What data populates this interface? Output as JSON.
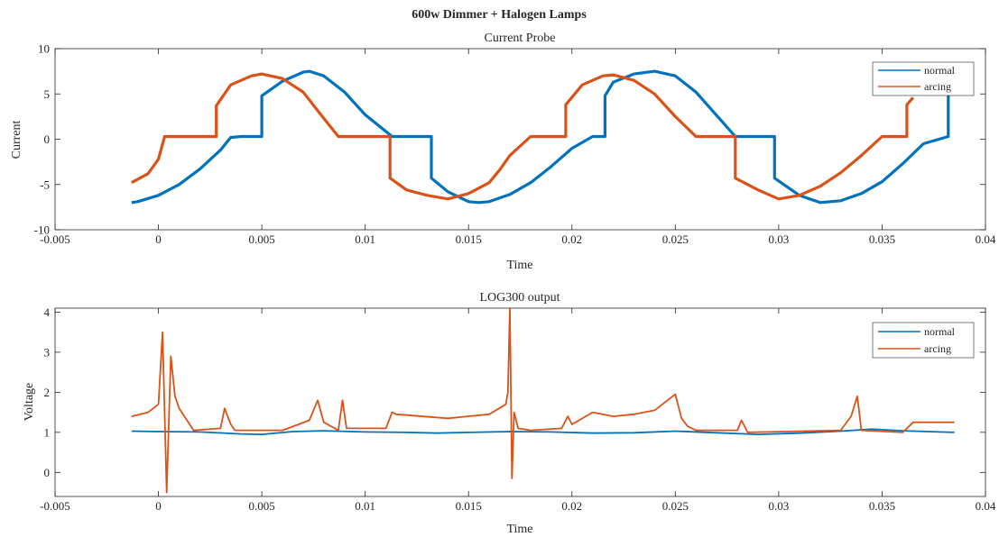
{
  "figure": {
    "suptitle": "600w Dimmer + Halogen Lamps",
    "colors": {
      "normal": "#0072BD",
      "arcing": "#D95319"
    }
  },
  "chart_data": [
    {
      "type": "line",
      "title": "Current Probe",
      "xlabel": "Time",
      "ylabel": "Current",
      "xlim": [
        -0.005,
        0.04
      ],
      "ylim": [
        -10,
        10
      ],
      "xticks": [
        "-0.005",
        "0",
        "0.005",
        "0.01",
        "0.015",
        "0.02",
        "0.025",
        "0.03",
        "0.035",
        "0.04"
      ],
      "yticks": [
        "-10",
        "-5",
        "0",
        "5",
        "10"
      ],
      "legend": {
        "location": "top-right",
        "entries": [
          "normal",
          "arcing"
        ]
      },
      "series": [
        {
          "name": "normal",
          "x": [
            -0.0013,
            -0.001,
            0.0,
            0.001,
            0.002,
            0.003,
            0.0035,
            0.004,
            0.005,
            0.005,
            0.006,
            0.007,
            0.0073,
            0.008,
            0.009,
            0.01,
            0.0113,
            0.0114,
            0.012,
            0.0132,
            0.0132,
            0.014,
            0.015,
            0.0155,
            0.016,
            0.017,
            0.018,
            0.019,
            0.02,
            0.021,
            0.0216,
            0.0216,
            0.0216,
            0.022,
            0.023,
            0.024,
            0.025,
            0.026,
            0.0279,
            0.028,
            0.029,
            0.0298,
            0.0298,
            0.031,
            0.032,
            0.033,
            0.034,
            0.035,
            0.036,
            0.037,
            0.0382,
            0.0382
          ],
          "y": [
            -7.0,
            -6.9,
            -6.2,
            -5.0,
            -3.3,
            -1.2,
            0.2,
            0.3,
            0.3,
            4.8,
            6.4,
            7.4,
            7.5,
            7.0,
            5.2,
            2.7,
            0.3,
            0.3,
            0.3,
            0.3,
            -4.3,
            -5.8,
            -6.9,
            -7.0,
            -6.9,
            -6.1,
            -4.8,
            -3.0,
            -1.0,
            0.3,
            0.3,
            0.3,
            4.8,
            6.3,
            7.2,
            7.5,
            7.0,
            5.2,
            0.3,
            0.3,
            0.3,
            0.3,
            -4.3,
            -6.2,
            -7.0,
            -6.8,
            -6.0,
            -4.7,
            -2.7,
            -0.5,
            0.3,
            7.5
          ]
        },
        {
          "name": "arcing",
          "x": [
            -0.0013,
            -0.0005,
            0.0,
            0.0003,
            0.001,
            0.002,
            0.0028,
            0.0028,
            0.0035,
            0.0045,
            0.005,
            0.006,
            0.007,
            0.008,
            0.0087,
            0.009,
            0.01,
            0.0112,
            0.0112,
            0.012,
            0.013,
            0.014,
            0.015,
            0.016,
            0.0165,
            0.017,
            0.018,
            0.019,
            0.0197,
            0.0197,
            0.0205,
            0.0215,
            0.022,
            0.023,
            0.024,
            0.025,
            0.026,
            0.027,
            0.0279,
            0.0279,
            0.029,
            0.03,
            0.031,
            0.032,
            0.033,
            0.034,
            0.035,
            0.036,
            0.0362,
            0.0362,
            0.0365
          ],
          "y": [
            -4.8,
            -3.8,
            -2.2,
            0.3,
            0.3,
            0.3,
            0.3,
            3.7,
            6.0,
            7.0,
            7.2,
            6.7,
            5.2,
            2.3,
            0.3,
            0.3,
            0.3,
            0.3,
            -4.3,
            -5.6,
            -6.2,
            -6.6,
            -6.0,
            -4.8,
            -3.4,
            -1.8,
            0.3,
            0.3,
            0.3,
            3.8,
            6.0,
            7.0,
            7.1,
            6.5,
            5.0,
            2.5,
            0.3,
            0.3,
            0.3,
            -4.3,
            -5.6,
            -6.6,
            -6.2,
            -5.2,
            -3.7,
            -1.8,
            0.3,
            0.3,
            0.3,
            3.8,
            4.6
          ]
        }
      ]
    },
    {
      "type": "line",
      "title": "LOG300 output",
      "xlabel": "Time",
      "ylabel": "Voltage",
      "xlim": [
        -0.005,
        0.04
      ],
      "ylim": [
        -0.6,
        4.1
      ],
      "xticks": [
        "-0.005",
        "0",
        "0.005",
        "0.01",
        "0.015",
        "0.02",
        "0.025",
        "0.03",
        "0.035",
        "0.04"
      ],
      "yticks": [
        "0",
        "1",
        "2",
        "3",
        "4"
      ],
      "legend": {
        "location": "top-right",
        "entries": [
          "normal",
          "arcing"
        ]
      },
      "series": [
        {
          "name": "normal",
          "x": [
            -0.0013,
            0.0,
            0.002,
            0.004,
            0.005,
            0.0065,
            0.008,
            0.01,
            0.012,
            0.0135,
            0.015,
            0.017,
            0.019,
            0.021,
            0.023,
            0.025,
            0.027,
            0.029,
            0.031,
            0.033,
            0.0345,
            0.036,
            0.0385
          ],
          "y": [
            1.03,
            1.02,
            1.01,
            0.96,
            0.95,
            1.02,
            1.04,
            1.01,
            1.0,
            0.98,
            1.0,
            1.02,
            1.01,
            0.98,
            0.99,
            1.03,
            0.99,
            0.95,
            0.98,
            1.03,
            1.08,
            1.04,
            1.0
          ]
        },
        {
          "name": "arcing",
          "x": [
            -0.0013,
            -0.0005,
            0.0,
            0.0002,
            0.0004,
            0.0006,
            0.0008,
            0.001,
            0.0017,
            0.003,
            0.0032,
            0.0035,
            0.0037,
            0.006,
            0.0073,
            0.0077,
            0.008,
            0.0087,
            0.0089,
            0.0091,
            0.011,
            0.0113,
            0.0115,
            0.014,
            0.016,
            0.0168,
            0.0169,
            0.017,
            0.0171,
            0.0172,
            0.0174,
            0.018,
            0.0195,
            0.0198,
            0.02,
            0.021,
            0.022,
            0.023,
            0.024,
            0.025,
            0.0253,
            0.0256,
            0.026,
            0.028,
            0.0282,
            0.0285,
            0.033,
            0.0335,
            0.0338,
            0.034,
            0.036,
            0.0365,
            0.0385
          ],
          "y": [
            1.4,
            1.5,
            1.7,
            3.5,
            -0.5,
            2.9,
            1.9,
            1.6,
            1.05,
            1.1,
            1.6,
            1.2,
            1.05,
            1.05,
            1.3,
            1.8,
            1.25,
            1.05,
            1.8,
            1.1,
            1.1,
            1.5,
            1.45,
            1.35,
            1.45,
            1.7,
            2.0,
            4.1,
            -0.15,
            1.5,
            1.1,
            1.05,
            1.1,
            1.4,
            1.2,
            1.5,
            1.4,
            1.45,
            1.55,
            1.95,
            1.35,
            1.15,
            1.05,
            1.05,
            1.3,
            1.0,
            1.05,
            1.4,
            1.9,
            1.05,
            1.0,
            1.25,
            1.25
          ]
        }
      ]
    }
  ]
}
